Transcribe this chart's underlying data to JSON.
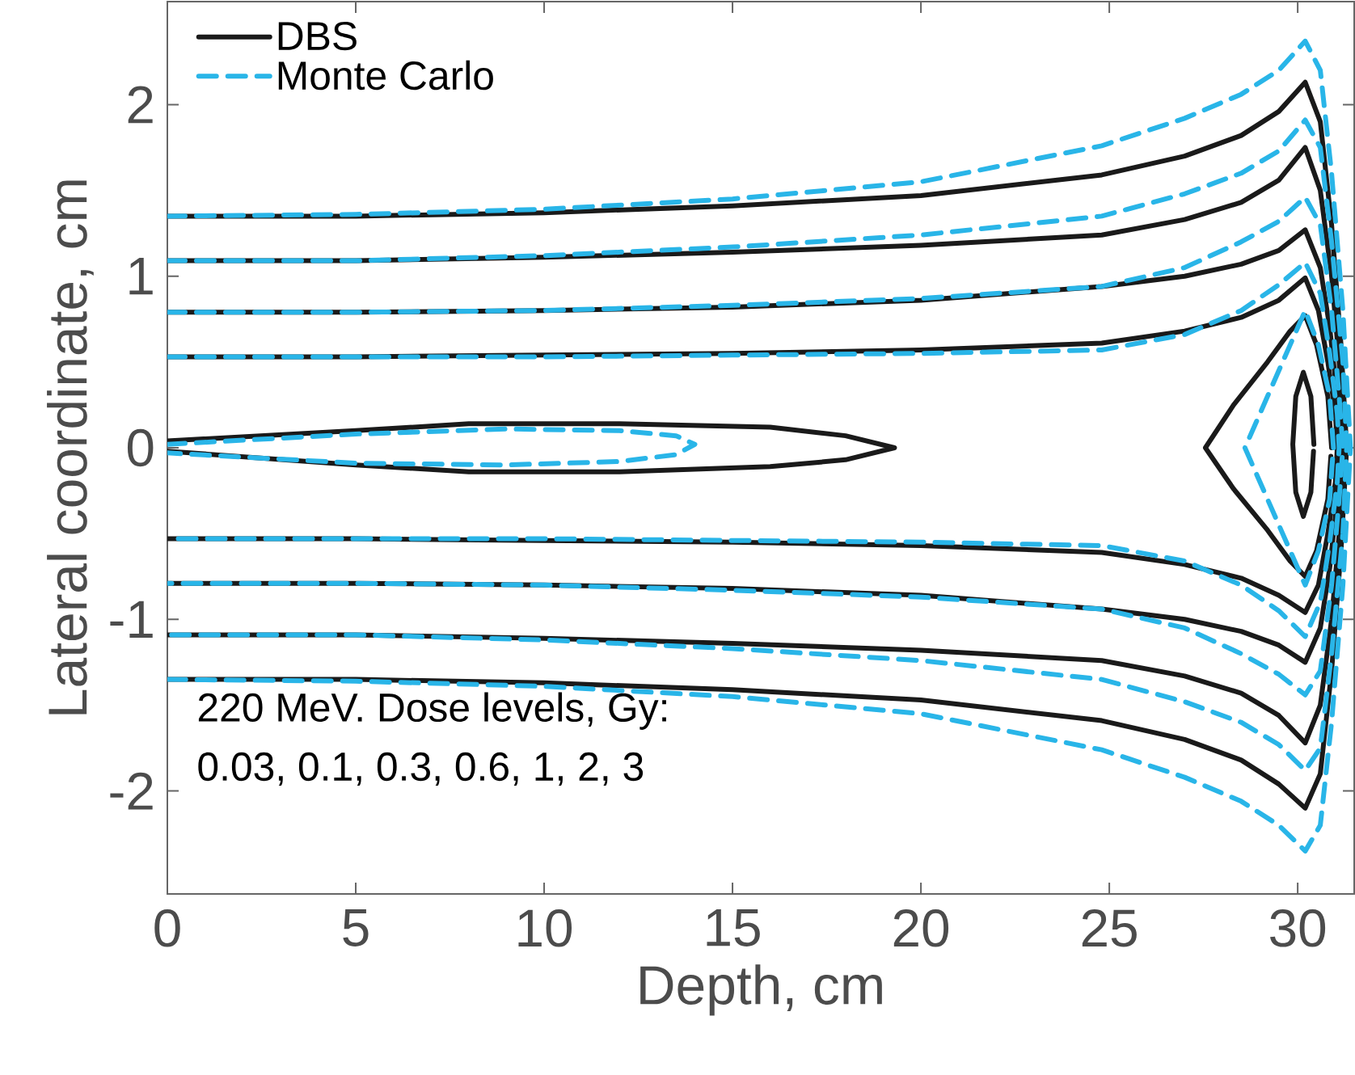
{
  "chart_data": {
    "type": "line",
    "xlabel": "Depth, cm",
    "ylabel": "Lateral coordinate, cm",
    "xlim": [
      0,
      31.5
    ],
    "ylim": [
      -2.6,
      2.6
    ],
    "xticks": [
      0,
      5,
      10,
      15,
      20,
      25,
      30
    ],
    "yticks": [
      -2,
      -1,
      0,
      1,
      2
    ],
    "legend": "top left",
    "annotations": [
      "220 MeV. Dose levels, Gy:",
      "0.03, 0.1, 0.3, 0.6, 1, 2, 3"
    ],
    "series": [
      {
        "name": "DBS",
        "color": "#1a1a1a",
        "line_style": "solid",
        "x": [
          0,
          5,
          10,
          15,
          20,
          24.8,
          27,
          28.5,
          29.5,
          30.2,
          30.6,
          30.9,
          31.15,
          31.3,
          31.15,
          30.9,
          30.6,
          30.2,
          29.5,
          28.5,
          27,
          24.8,
          20,
          15,
          10,
          5,
          0
        ],
        "values": [
          1.35,
          1.35,
          1.37,
          1.41,
          1.47,
          1.59,
          1.7,
          1.82,
          1.96,
          2.13,
          1.9,
          1.3,
          0.6,
          0,
          -0.6,
          -1.3,
          -1.9,
          -2.1,
          -1.96,
          -1.82,
          -1.7,
          -1.59,
          -1.47,
          -1.41,
          -1.37,
          -1.35,
          -1.35
        ]
      },
      {
        "color": "#1a1a1a",
        "line_style": "solid",
        "x": [
          0,
          5,
          10,
          15,
          20,
          24.8,
          27,
          28.5,
          29.5,
          30.2,
          30.6,
          30.9,
          31.1,
          31.2,
          31.1,
          30.9,
          30.6,
          30.2,
          29.5,
          28.5,
          27,
          24.8,
          20,
          15,
          10,
          5,
          0
        ],
        "values": [
          1.09,
          1.09,
          1.11,
          1.14,
          1.18,
          1.24,
          1.33,
          1.43,
          1.56,
          1.75,
          1.5,
          1.0,
          0.5,
          0,
          -0.5,
          -1.0,
          -1.5,
          -1.72,
          -1.56,
          -1.43,
          -1.33,
          -1.24,
          -1.18,
          -1.14,
          -1.11,
          -1.09,
          -1.09
        ]
      },
      {
        "color": "#1a1a1a",
        "line_style": "solid",
        "x": [
          0,
          5,
          10,
          15,
          20,
          24.8,
          27,
          28.5,
          29.5,
          30.2,
          30.6,
          30.85,
          31.05,
          31.1,
          31.05,
          30.85,
          30.6,
          30.2,
          29.5,
          28.5,
          27,
          24.8,
          20,
          15,
          10,
          5,
          0
        ],
        "values": [
          0.79,
          0.79,
          0.8,
          0.82,
          0.86,
          0.94,
          1.0,
          1.07,
          1.15,
          1.27,
          1.05,
          0.7,
          0.3,
          0,
          -0.3,
          -0.7,
          -1.05,
          -1.25,
          -1.15,
          -1.07,
          -1.0,
          -0.94,
          -0.86,
          -0.82,
          -0.8,
          -0.79,
          -0.79
        ]
      },
      {
        "color": "#1a1a1a",
        "line_style": "solid",
        "x": [
          0,
          5,
          10,
          15,
          20,
          24.8,
          27,
          28.5,
          29.5,
          30.2,
          30.55,
          30.8,
          31.0,
          31.05,
          31.0,
          30.8,
          30.55,
          30.2,
          29.5,
          28.5,
          27,
          24.8,
          20,
          15,
          10,
          5,
          0
        ],
        "values": [
          0.53,
          0.53,
          0.54,
          0.55,
          0.57,
          0.61,
          0.68,
          0.76,
          0.86,
          0.99,
          0.8,
          0.5,
          0.2,
          0,
          -0.2,
          -0.5,
          -0.8,
          -0.96,
          -0.86,
          -0.76,
          -0.68,
          -0.61,
          -0.57,
          -0.55,
          -0.54,
          -0.53,
          -0.53
        ]
      },
      {
        "color": "#1a1a1a",
        "line_style": "solid",
        "x": [
          0,
          5,
          8,
          12,
          16,
          18,
          19.3,
          18,
          16,
          12,
          8,
          5,
          0
        ],
        "values": [
          0.04,
          0.1,
          0.14,
          0.14,
          0.12,
          0.07,
          0,
          -0.07,
          -0.11,
          -0.14,
          -0.14,
          -0.1,
          -0.02
        ]
      },
      {
        "color": "#1a1a1a",
        "line_style": "solid",
        "x": [
          30.9,
          30.8,
          30.5,
          30.2,
          29.8,
          29.2,
          28.3,
          27.55,
          28.3,
          29.2,
          29.8,
          30.2,
          30.5,
          30.8,
          30.88
        ],
        "values": [
          0,
          0.3,
          0.6,
          0.77,
          0.68,
          0.5,
          0.25,
          0,
          -0.24,
          -0.48,
          -0.66,
          -0.75,
          -0.6,
          -0.3,
          -0.05
        ]
      },
      {
        "color": "#1a1a1a",
        "line_style": "solid",
        "x": [
          30.43,
          30.35,
          30.15,
          29.95,
          29.87,
          29.95,
          30.15,
          30.35,
          30.42
        ],
        "values": [
          0.02,
          0.3,
          0.44,
          0.3,
          0.02,
          -0.26,
          -0.4,
          -0.26,
          -0.02
        ]
      },
      {
        "name": "Monte Carlo",
        "color": "#29b5e8",
        "line_style": "dashed",
        "x": [
          0,
          5,
          10,
          15,
          20,
          24.8,
          27,
          28.5,
          29.5,
          30.2,
          30.6,
          30.9,
          31.2,
          31.4,
          31.2,
          30.9,
          30.6,
          30.2,
          29.5,
          28.5,
          27,
          24.8,
          20,
          15,
          10,
          5,
          0
        ],
        "values": [
          1.35,
          1.36,
          1.39,
          1.45,
          1.55,
          1.76,
          1.92,
          2.06,
          2.2,
          2.37,
          2.2,
          1.6,
          0.8,
          0,
          -0.8,
          -1.6,
          -2.2,
          -2.35,
          -2.2,
          -2.06,
          -1.92,
          -1.76,
          -1.55,
          -1.45,
          -1.39,
          -1.36,
          -1.35
        ]
      },
      {
        "color": "#29b5e8",
        "line_style": "dashed",
        "x": [
          0,
          5,
          10,
          15,
          20,
          24.8,
          27,
          28.5,
          29.5,
          30.2,
          30.6,
          30.9,
          31.2,
          31.3,
          31.2,
          30.9,
          30.6,
          30.2,
          29.5,
          28.5,
          27,
          24.8,
          20,
          15,
          10,
          5,
          0
        ],
        "values": [
          1.09,
          1.09,
          1.12,
          1.17,
          1.24,
          1.35,
          1.48,
          1.6,
          1.73,
          1.91,
          1.75,
          1.2,
          0.5,
          0,
          -0.5,
          -1.2,
          -1.75,
          -1.88,
          -1.73,
          -1.6,
          -1.48,
          -1.35,
          -1.24,
          -1.17,
          -1.12,
          -1.09,
          -1.09
        ]
      },
      {
        "color": "#29b5e8",
        "line_style": "dashed",
        "x": [
          0,
          5,
          10,
          15,
          20,
          24.8,
          27,
          28.5,
          29.5,
          30.2,
          30.6,
          30.9,
          31.1,
          31.2,
          31.1,
          30.9,
          30.6,
          30.2,
          29.5,
          28.5,
          27,
          24.8,
          20,
          15,
          10,
          5,
          0
        ],
        "values": [
          0.79,
          0.79,
          0.8,
          0.83,
          0.87,
          0.94,
          1.05,
          1.2,
          1.32,
          1.46,
          1.3,
          0.8,
          0.3,
          0,
          -0.3,
          -0.8,
          -1.3,
          -1.44,
          -1.32,
          -1.2,
          -1.05,
          -0.94,
          -0.87,
          -0.83,
          -0.8,
          -0.79,
          -0.79
        ]
      },
      {
        "color": "#29b5e8",
        "line_style": "dashed",
        "x": [
          0,
          5,
          10,
          15,
          20,
          24.8,
          27,
          28.5,
          29.5,
          30.2,
          30.6,
          30.85,
          31.05,
          31.1,
          31.05,
          30.85,
          30.6,
          30.2,
          29.5,
          28.5,
          27,
          24.8,
          20,
          15,
          10,
          5,
          0
        ],
        "values": [
          0.53,
          0.53,
          0.53,
          0.54,
          0.55,
          0.57,
          0.66,
          0.8,
          0.95,
          1.08,
          0.9,
          0.55,
          0.2,
          0,
          -0.2,
          -0.55,
          -0.9,
          -1.1,
          -0.95,
          -0.8,
          -0.66,
          -0.57,
          -0.55,
          -0.54,
          -0.53,
          -0.53,
          -0.53
        ]
      },
      {
        "color": "#29b5e8",
        "line_style": "dashed",
        "x": [
          0,
          5,
          9,
          12,
          13.5,
          14,
          13.5,
          12,
          9,
          5,
          0
        ],
        "values": [
          0.02,
          0.08,
          0.11,
          0.1,
          0.07,
          0.02,
          -0.04,
          -0.08,
          -0.1,
          -0.09,
          -0.03
        ]
      },
      {
        "color": "#29b5e8",
        "line_style": "dashed",
        "x": [
          30.95,
          30.85,
          30.55,
          30.2,
          29.8,
          29.2,
          28.6,
          29.2,
          29.8,
          30.2,
          30.55,
          30.85,
          30.93
        ],
        "values": [
          0,
          0.3,
          0.6,
          0.8,
          0.6,
          0.3,
          0,
          -0.3,
          -0.6,
          -0.8,
          -0.6,
          -0.3,
          -0.05
        ]
      }
    ]
  }
}
